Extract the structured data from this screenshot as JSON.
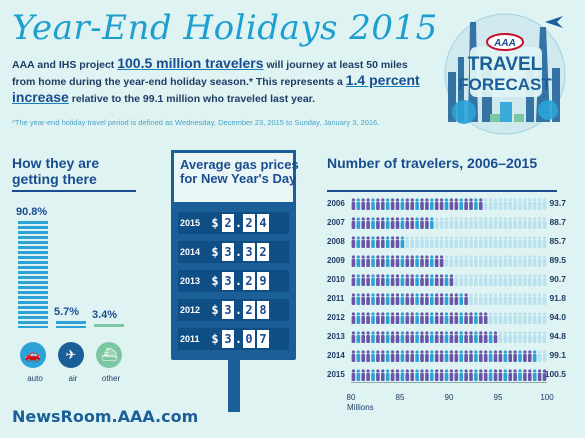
{
  "title": "Year-End Holidays 2015",
  "intro": {
    "p1": "AAA and IHS project ",
    "travelers": "100.5 million travelers",
    "p2": " will journey at least 50 miles from home during the year-end holiday season.* This represents a ",
    "increase": "1.4 percent increase",
    "p3": " relative to the 99.1 million who traveled last year."
  },
  "footnote": "*The year-end holiday travel period is defined as Wednesday, December 23, 2015 to Sunday, January 3, 2016.",
  "logo": {
    "badge": "AAA",
    "line1": "TRAVEL",
    "line2": "FORECAST"
  },
  "how": {
    "title": "How they are getting there",
    "modes": [
      {
        "label": "auto",
        "pct": "90.8%",
        "value": 90.8,
        "color": "#2ba3d8"
      },
      {
        "label": "air",
        "pct": "5.7%",
        "value": 5.7,
        "color": "#1a5f97"
      },
      {
        "label": "other",
        "pct": "3.4%",
        "value": 3.4,
        "color": "#7bc7a2"
      }
    ]
  },
  "gas": {
    "title": "Average gas prices for New Year's Day",
    "rows": [
      {
        "year": "2015",
        "price": "2.24"
      },
      {
        "year": "2014",
        "price": "3.32"
      },
      {
        "year": "2013",
        "price": "3.29"
      },
      {
        "year": "2012",
        "price": "3.28"
      },
      {
        "year": "2011",
        "price": "3.07"
      }
    ]
  },
  "travelers": {
    "title": "Number of travelers, 2006–2015",
    "axis_unit": "Millions",
    "ticks": [
      "80",
      "85",
      "90",
      "95",
      "100"
    ],
    "xlim": [
      80,
      100
    ]
  },
  "chart_data": {
    "type": "bar",
    "title": "Number of travelers, 2006–2015",
    "xlabel": "Millions",
    "categories": [
      "2006",
      "2007",
      "2008",
      "2009",
      "2010",
      "2011",
      "2012",
      "2013",
      "2014",
      "2015"
    ],
    "values": [
      93.7,
      88.7,
      85.7,
      89.5,
      90.7,
      91.8,
      94.0,
      94.8,
      99.1,
      100.5
    ],
    "labels": [
      "93.7",
      "88.7",
      "85.7",
      "89.5",
      "90.7",
      "91.8",
      "94.0",
      "94.8",
      "99.1",
      "100.5"
    ],
    "xlim": [
      80,
      100
    ]
  },
  "footer": "NewsRoom.AAA.com"
}
